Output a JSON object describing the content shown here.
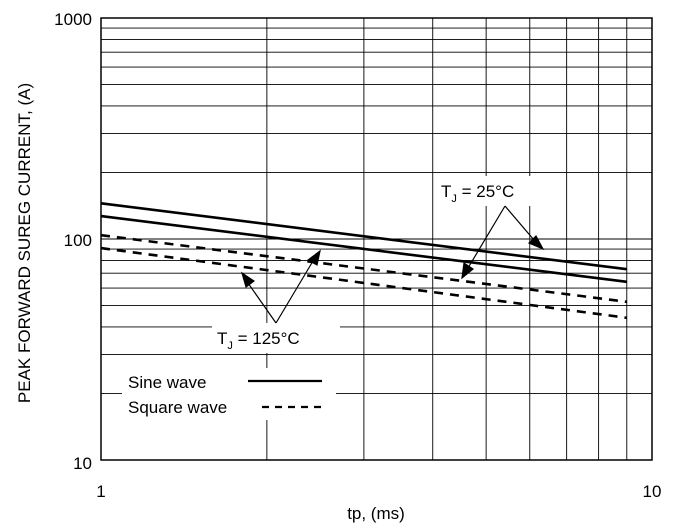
{
  "chart_data": {
    "type": "line",
    "title": "",
    "xlabel": "tp, (ms)",
    "ylabel": "PEAK FORWARD SUREG CURRENT, (A)",
    "x_scale": "log",
    "y_scale": "log",
    "xlim": [
      1,
      10
    ],
    "ylim": [
      10,
      1000
    ],
    "x_tick_labels": [
      "1",
      "10"
    ],
    "y_tick_labels": [
      "10",
      "100",
      "1000"
    ],
    "grid": true,
    "series": [
      {
        "style": "solid",
        "x": [
          1,
          9
        ],
        "y": [
          145,
          73
        ]
      },
      {
        "style": "solid",
        "x": [
          1,
          9
        ],
        "y": [
          127,
          64
        ]
      },
      {
        "style": "dashed",
        "x": [
          1,
          9
        ],
        "y": [
          104,
          52
        ]
      },
      {
        "style": "dashed",
        "x": [
          1,
          9
        ],
        "y": [
          91,
          44
        ]
      }
    ],
    "legend": {
      "placement": "bottom-left",
      "entries": [
        {
          "label": "Sine wave",
          "style": "solid"
        },
        {
          "label": "Square wave",
          "style": "dashed"
        }
      ]
    },
    "annotations": [
      {
        "main": "T",
        "sub": "J",
        "rest": " = 25°C"
      },
      {
        "main": "T",
        "sub": "J",
        "rest": " = 125°C"
      }
    ],
    "colors": {
      "line": "#000000",
      "grid": "#000000",
      "background": "#ffffff"
    }
  }
}
